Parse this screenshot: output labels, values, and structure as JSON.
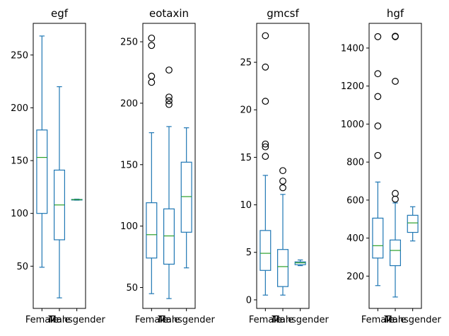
{
  "chart_data": [
    {
      "type": "box",
      "title": "egf",
      "categories": [
        "Female",
        "Male",
        "Transgender"
      ],
      "ylim": [
        10,
        280
      ],
      "yticks": [
        50,
        100,
        150,
        200,
        250
      ],
      "boxes": [
        {
          "category": "Female",
          "whisker_low": 49,
          "q1": 100,
          "median": 153,
          "q3": 179,
          "whisker_high": 268,
          "outliers": []
        },
        {
          "category": "Male",
          "whisker_low": 20,
          "q1": 75,
          "median": 108,
          "q3": 141,
          "whisker_high": 220,
          "outliers": []
        },
        {
          "category": "Transgender",
          "whisker_low": 112.5,
          "q1": 112.8,
          "median": 113,
          "q3": 113.2,
          "whisker_high": 113.5,
          "outliers": []
        }
      ]
    },
    {
      "type": "box",
      "title": "eotaxin",
      "categories": [
        "Female",
        "Male",
        "Transgender"
      ],
      "ylim": [
        33,
        265
      ],
      "yticks": [
        50,
        100,
        150,
        200,
        250
      ],
      "boxes": [
        {
          "category": "Female",
          "whisker_low": 45,
          "q1": 74,
          "median": 93,
          "q3": 119,
          "whisker_high": 176,
          "outliers": [
            217,
            222,
            247,
            253
          ]
        },
        {
          "category": "Male",
          "whisker_low": 41,
          "q1": 69,
          "median": 92,
          "q3": 114,
          "whisker_high": 181,
          "outliers": [
            199,
            202,
            205,
            227
          ]
        },
        {
          "category": "Transgender",
          "whisker_low": 66,
          "q1": 95,
          "median": 124,
          "q3": 152,
          "whisker_high": 180,
          "outliers": []
        }
      ]
    },
    {
      "type": "box",
      "title": "gmcsf",
      "categories": [
        "Female",
        "Male",
        "Transgender"
      ],
      "ylim": [
        -0.9,
        29.1
      ],
      "yticks": [
        0,
        5,
        10,
        15,
        20,
        25
      ],
      "boxes": [
        {
          "category": "Female",
          "whisker_low": 0.5,
          "q1": 3.1,
          "median": 4.9,
          "q3": 7.3,
          "whisker_high": 13.1,
          "outliers": [
            15.1,
            16.1,
            16.4,
            20.9,
            24.5,
            27.8
          ]
        },
        {
          "category": "Male",
          "whisker_low": 0.5,
          "q1": 1.4,
          "median": 3.5,
          "q3": 5.3,
          "whisker_high": 11.1,
          "outliers": [
            11.8,
            12.5,
            13.6
          ]
        },
        {
          "category": "Transgender",
          "whisker_low": 3.6,
          "q1": 3.7,
          "median": 3.9,
          "q3": 4.0,
          "whisker_high": 4.2,
          "outliers": []
        }
      ]
    },
    {
      "type": "box",
      "title": "hgf",
      "categories": [
        "Female",
        "Male",
        "Transgender"
      ],
      "ylim": [
        30,
        1530
      ],
      "yticks": [
        200,
        400,
        600,
        800,
        1000,
        1200,
        1400
      ],
      "boxes": [
        {
          "category": "Female",
          "whisker_low": 150,
          "q1": 295,
          "median": 360,
          "q3": 505,
          "whisker_high": 695,
          "outliers": [
            835,
            990,
            1145,
            1265,
            1460
          ]
        },
        {
          "category": "Male",
          "whisker_low": 90,
          "q1": 255,
          "median": 335,
          "q3": 390,
          "whisker_high": 585,
          "outliers": [
            605,
            635,
            1225,
            1460,
            1462
          ]
        },
        {
          "category": "Transgender",
          "whisker_low": 385,
          "q1": 430,
          "median": 480,
          "q3": 520,
          "whisker_high": 565,
          "outliers": []
        }
      ]
    }
  ],
  "colors": {
    "box": "#1f77b4",
    "median": "#2ca02c",
    "outlier": "#000000",
    "axes": "#000000",
    "background": "#ffffff"
  }
}
